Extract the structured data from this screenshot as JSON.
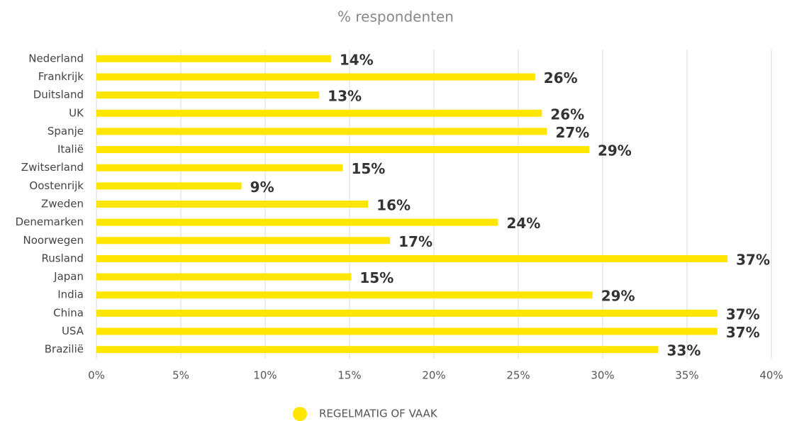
{
  "chart_data": {
    "type": "bar",
    "orientation": "horizontal",
    "title": "% respondenten",
    "categories": [
      "Nederland",
      "Frankrijk",
      "Duitsland",
      "UK",
      "Spanje",
      "Italië",
      "Zwitserland",
      "Oostenrijk",
      "Zweden",
      "Denemarken",
      "Noorwegen",
      "Rusland",
      "Japan",
      "India",
      "China",
      "USA",
      "Brazilië"
    ],
    "series": [
      {
        "name": "REGELMATIG OF VAAK",
        "color": "#ffe600",
        "values": [
          13.9,
          26.0,
          13.2,
          26.4,
          26.7,
          29.2,
          14.6,
          8.6,
          16.1,
          23.8,
          17.4,
          37.4,
          15.1,
          29.4,
          36.8,
          36.8,
          33.3
        ],
        "value_labels": [
          "14%",
          "26%",
          "13%",
          "26%",
          "27%",
          "29%",
          "15%",
          "9%",
          "16%",
          "24%",
          "17%",
          "37%",
          "15%",
          "29%",
          "37%",
          "37%",
          "33%"
        ]
      }
    ],
    "xlim": [
      0,
      40
    ],
    "xticks": [
      {
        "value": 0,
        "label": "0%"
      },
      {
        "value": 5,
        "label": "5%"
      },
      {
        "value": 10,
        "label": "10%"
      },
      {
        "value": 15,
        "label": "15%"
      },
      {
        "value": 20,
        "label": "20%"
      },
      {
        "value": 25,
        "label": "25%"
      },
      {
        "value": 30,
        "label": "30%"
      },
      {
        "value": 35,
        "label": "35%"
      },
      {
        "value": 40,
        "label": "40%"
      }
    ],
    "grid": true,
    "legend": "bottom"
  }
}
